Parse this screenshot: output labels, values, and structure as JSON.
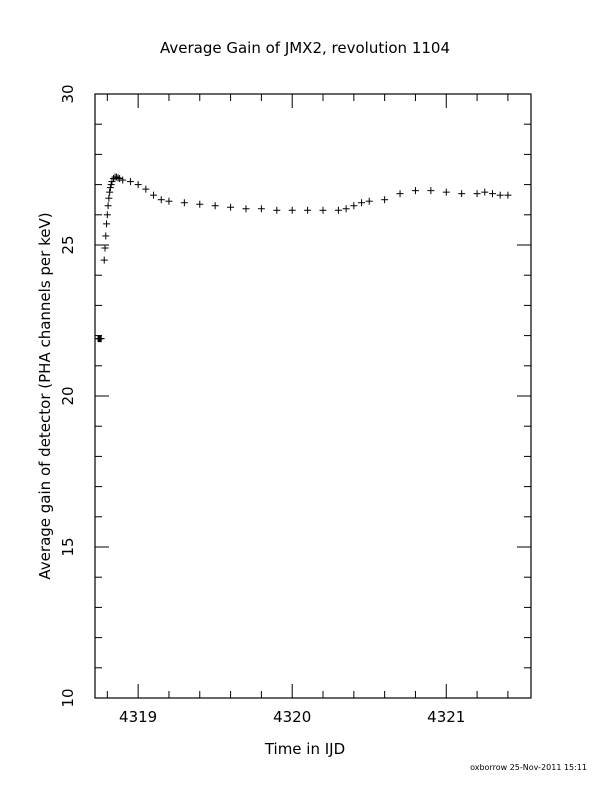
{
  "chart_data": {
    "type": "scatter",
    "title": "Average Gain of JMX2, revolution 1104",
    "xlabel": "Time in IJD",
    "ylabel": "Average gain of detector (PHA channels per keV)",
    "xlim": [
      4318.72,
      4321.55
    ],
    "ylim": [
      10,
      30
    ],
    "x_major_ticks": [
      4319,
      4320,
      4321
    ],
    "x_minor_step": 0.2,
    "y_major_ticks": [
      10,
      15,
      20,
      25,
      30
    ],
    "y_minor_step": 1,
    "x_tick_labels": [
      "4319",
      "4320",
      "4321"
    ],
    "y_tick_labels": [
      "10",
      "15",
      "20",
      "25",
      "30"
    ],
    "grid": false,
    "marker": "plus",
    "series": [
      {
        "x": [
          4318.78,
          4318.785,
          4318.79,
          4318.795,
          4318.8,
          4318.805,
          4318.81,
          4318.815,
          4318.82,
          4318.825,
          4318.83,
          4318.84,
          4318.85,
          4318.86,
          4318.87,
          4318.88,
          4318.9,
          4318.95,
          4319.0,
          4319.05,
          4319.1,
          4319.15,
          4319.2,
          4319.3,
          4319.4,
          4319.5,
          4319.6,
          4319.7,
          4319.8,
          4319.9,
          4320.0,
          4320.1,
          4320.2,
          4320.3,
          4320.35,
          4320.4,
          4320.45,
          4320.5,
          4320.6,
          4320.7,
          4320.8,
          4320.9,
          4321.0,
          4321.1,
          4321.2,
          4321.25,
          4321.3,
          4321.35,
          4321.4
        ],
        "y": [
          24.5,
          24.9,
          25.3,
          25.7,
          26.0,
          26.3,
          26.55,
          26.75,
          26.9,
          27.0,
          27.1,
          27.2,
          27.25,
          27.25,
          27.22,
          27.2,
          27.15,
          27.1,
          27.0,
          26.85,
          26.65,
          26.5,
          26.45,
          26.4,
          26.35,
          26.3,
          26.25,
          26.2,
          26.2,
          26.15,
          26.15,
          26.15,
          26.15,
          26.15,
          26.2,
          26.3,
          26.4,
          26.45,
          26.5,
          26.7,
          26.8,
          26.8,
          26.75,
          26.7,
          26.7,
          26.75,
          26.7,
          26.65,
          26.65
        ]
      },
      {
        "x": [
          4318.74,
          4318.745,
          4318.75,
          4318.755,
          4318.76
        ],
        "y": [
          21.9,
          21.9,
          21.9,
          21.9,
          21.9
        ]
      }
    ]
  },
  "footer": {
    "credit": "oxborrow 25-Nov-2011 15:11"
  }
}
